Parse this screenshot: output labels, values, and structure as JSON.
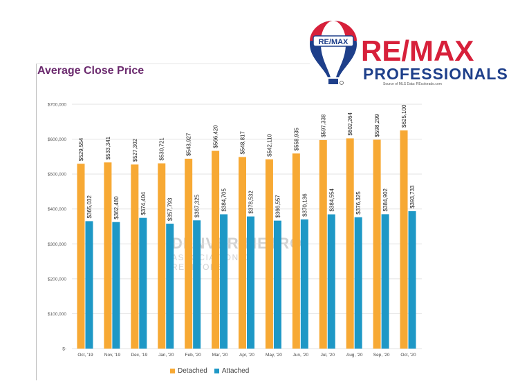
{
  "colors": {
    "detached": "#F7A934",
    "attached": "#1E98C6",
    "title": "#6B2A6E",
    "brand_red": "#D7203A",
    "brand_blue": "#1E3F8A"
  },
  "logo": {
    "balloon_label": "RE/MAX",
    "wordmark": "RE/MAX",
    "subtitle": "PROFESSIONALS",
    "source_note": "Source of MLS Data: REcolorado.com"
  },
  "watermark": {
    "line1": "DENVER METRO",
    "line2": "ASSOCIATION OF REALTORS"
  },
  "chart_data": {
    "type": "bar",
    "title": "Average Close Price",
    "categories": [
      "Oct, '19",
      "Nov, '19",
      "Dec, '19",
      "Jan, '20",
      "Feb, '20",
      "Mar, '20",
      "Apr, '20",
      "May, '20",
      "Jun, '20",
      "Jul, '20",
      "Aug, '20",
      "Sep, '20",
      "Oct, '20"
    ],
    "series": [
      {
        "name": "Detached",
        "values": [
          529554,
          533341,
          527302,
          530721,
          543927,
          566420,
          548817,
          542110,
          558935,
          597338,
          602264,
          598299,
          625100
        ],
        "labels": [
          "$529,554",
          "$533,341",
          "$527,302",
          "$530,721",
          "$543,927",
          "$566,420",
          "$548,817",
          "$542,110",
          "$558,935",
          "$597,338",
          "$602,264",
          "$598,299",
          "$625,100"
        ]
      },
      {
        "name": "Attached",
        "values": [
          365032,
          362480,
          374404,
          357793,
          367325,
          384705,
          378532,
          366557,
          370136,
          384554,
          376325,
          384902,
          393733
        ],
        "labels": [
          "$365,032",
          "$362,480",
          "$374,404",
          "$357,793",
          "$367,325",
          "$384,705",
          "$378,532",
          "$366,557",
          "$370,136",
          "$384,554",
          "$376,325",
          "$384,902",
          "$393,733"
        ]
      }
    ],
    "ylim": [
      0,
      700000
    ],
    "yticks": [
      0,
      100000,
      200000,
      300000,
      400000,
      500000,
      600000,
      700000
    ],
    "ytick_labels": [
      "$-",
      "$100,000",
      "$200,000",
      "$300,000",
      "$400,000",
      "$500,000",
      "$600,000",
      "$700,000"
    ],
    "grid": true,
    "legend": "bottom"
  }
}
